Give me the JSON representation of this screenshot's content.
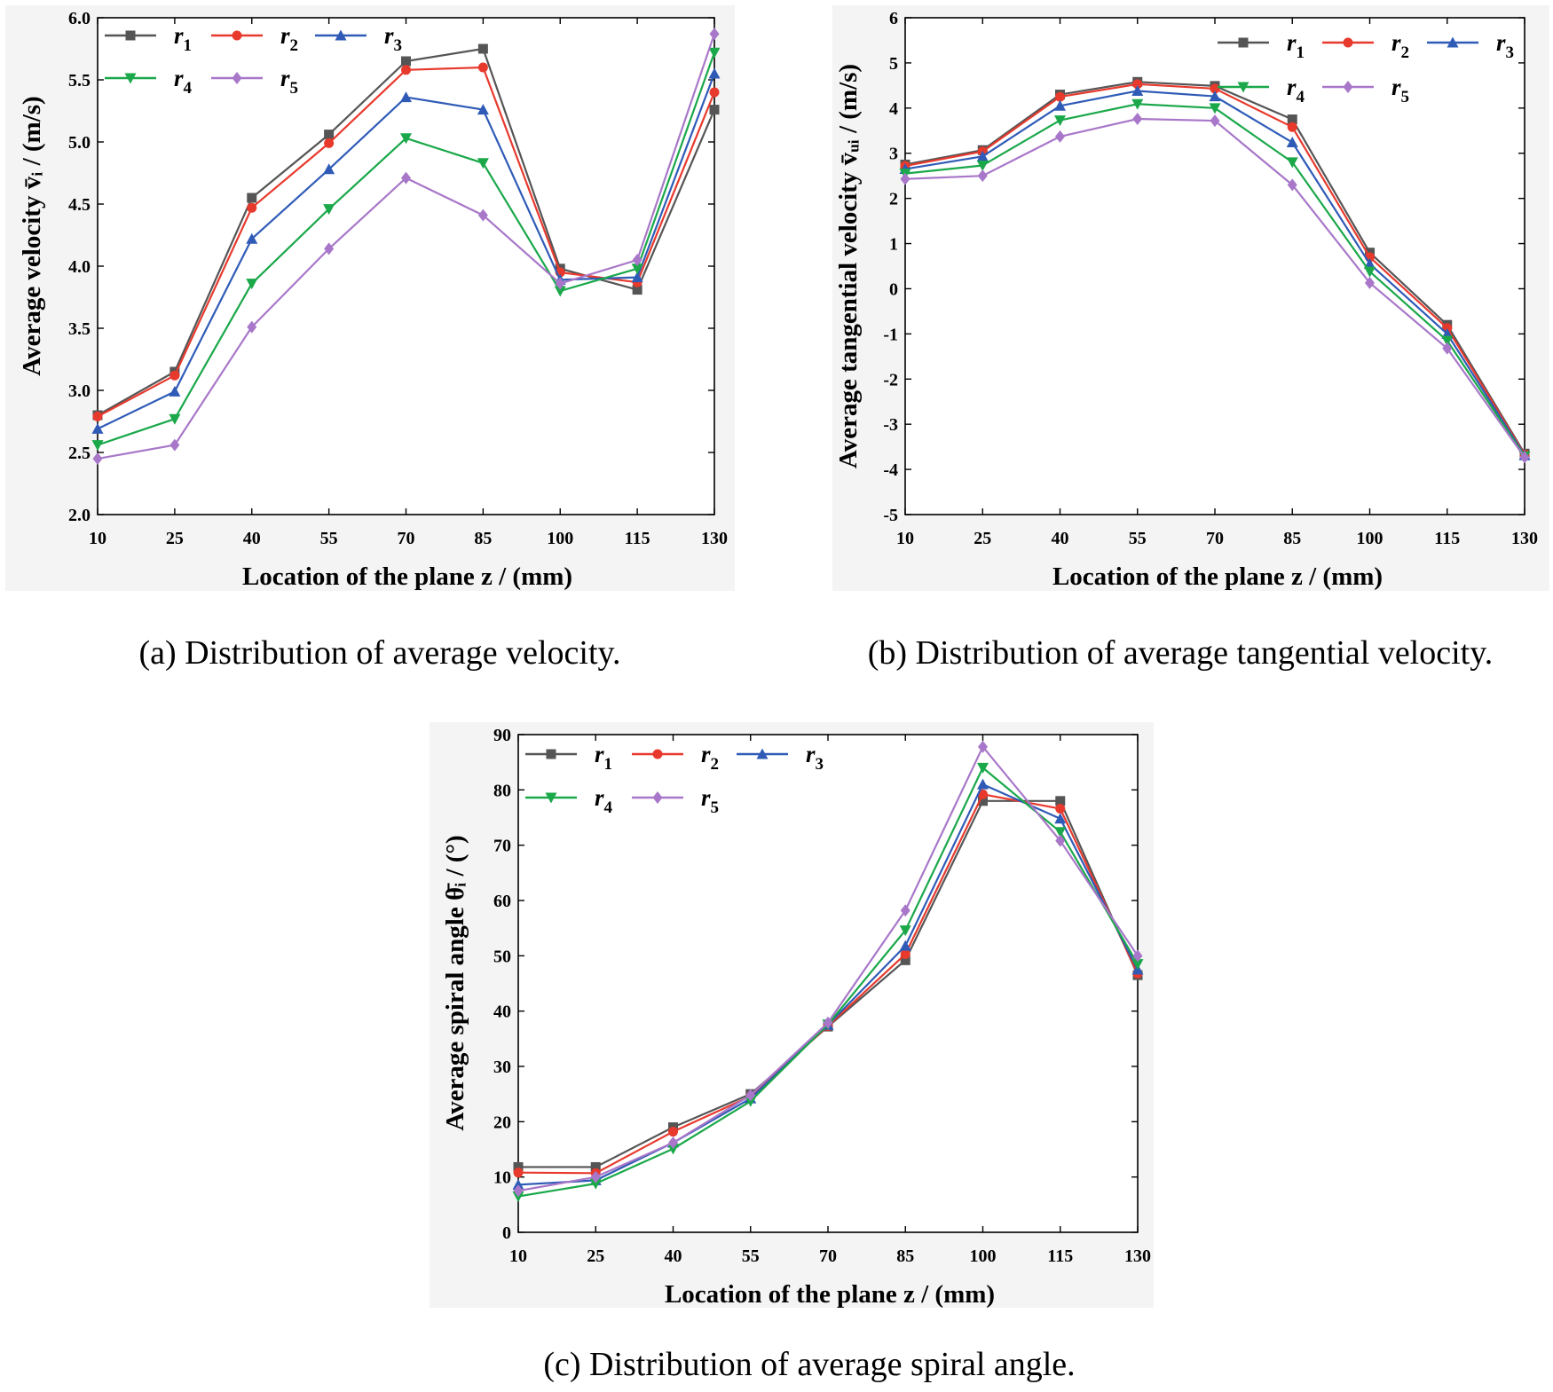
{
  "chart_data": [
    {
      "id": "a",
      "type": "line",
      "caption": "(a) Distribution of average velocity.",
      "xlabel": "Location of the plane z / (mm)",
      "ylabel": "Average velocity v̄ᵢ / (m/s)",
      "x": [
        10,
        25,
        40,
        55,
        70,
        85,
        100,
        115,
        130
      ],
      "x_tick_labels": [
        "10",
        "25",
        "40",
        "55",
        "70",
        "85",
        "100",
        "115",
        "130"
      ],
      "ylim": [
        2.0,
        6.0
      ],
      "y_ticks": [
        2.0,
        2.5,
        3.0,
        3.5,
        4.0,
        4.5,
        5.0,
        5.5,
        6.0
      ],
      "y_tick_labels": [
        "2.0",
        "2.5",
        "3.0",
        "3.5",
        "4.0",
        "4.5",
        "5.0",
        "5.5",
        "6.0"
      ],
      "legend_position": "top-left",
      "series": [
        {
          "name": "r1",
          "base": "r",
          "sub": "1",
          "color": "#555555",
          "marker": "square",
          "values": [
            2.8,
            3.15,
            4.55,
            5.06,
            5.65,
            5.75,
            3.98,
            3.81,
            5.26
          ]
        },
        {
          "name": "r2",
          "base": "r",
          "sub": "2",
          "color": "#e8392d",
          "marker": "circle",
          "values": [
            2.79,
            3.12,
            4.47,
            4.99,
            5.58,
            5.6,
            3.95,
            3.87,
            5.4
          ]
        },
        {
          "name": "r3",
          "base": "r",
          "sub": "3",
          "color": "#2f5bb7",
          "marker": "triangle-up",
          "values": [
            2.69,
            2.99,
            4.22,
            4.78,
            5.36,
            5.26,
            3.89,
            3.91,
            5.55
          ]
        },
        {
          "name": "r4",
          "base": "r",
          "sub": "4",
          "color": "#1aa84a",
          "marker": "triangle-down",
          "values": [
            2.56,
            2.77,
            3.86,
            4.46,
            5.03,
            4.83,
            3.8,
            3.98,
            5.72
          ]
        },
        {
          "name": "r5",
          "base": "r",
          "sub": "5",
          "color": "#a877c9",
          "marker": "diamond",
          "values": [
            2.45,
            2.56,
            3.51,
            4.14,
            4.71,
            4.41,
            3.86,
            4.05,
            5.87
          ]
        }
      ]
    },
    {
      "id": "b",
      "type": "line",
      "caption": "(b) Distribution of average tangential velocity.",
      "xlabel": "Location of the plane z / (mm)",
      "ylabel": "Average tangential velocity v̄ᵤᵢ / (m/s)",
      "x": [
        10,
        25,
        40,
        55,
        70,
        85,
        100,
        115,
        130
      ],
      "x_tick_labels": [
        "10",
        "25",
        "40",
        "55",
        "70",
        "85",
        "100",
        "115",
        "130"
      ],
      "ylim": [
        -5,
        6
      ],
      "y_ticks": [
        -5,
        -4,
        -3,
        -2,
        -1,
        0,
        1,
        2,
        3,
        4,
        5,
        6
      ],
      "y_tick_labels": [
        "-5",
        "-4",
        "-3",
        "-2",
        "-1",
        "0",
        "1",
        "2",
        "3",
        "4",
        "5",
        "6"
      ],
      "legend_position": "top-right",
      "series": [
        {
          "name": "r1",
          "base": "r",
          "sub": "1",
          "color": "#555555",
          "marker": "square",
          "values": [
            2.75,
            3.07,
            4.3,
            4.58,
            4.49,
            3.75,
            0.8,
            -0.8,
            -3.65
          ]
        },
        {
          "name": "r2",
          "base": "r",
          "sub": "2",
          "color": "#e8392d",
          "marker": "circle",
          "values": [
            2.72,
            3.04,
            4.25,
            4.53,
            4.43,
            3.58,
            0.7,
            -0.87,
            -3.67
          ]
        },
        {
          "name": "r3",
          "base": "r",
          "sub": "3",
          "color": "#2f5bb7",
          "marker": "triangle-up",
          "values": [
            2.65,
            2.93,
            4.05,
            4.38,
            4.26,
            3.24,
            0.55,
            -1.0,
            -3.69
          ]
        },
        {
          "name": "r4",
          "base": "r",
          "sub": "4",
          "color": "#1aa84a",
          "marker": "triangle-down",
          "values": [
            2.55,
            2.73,
            3.73,
            4.09,
            4.0,
            2.8,
            0.38,
            -1.15,
            -3.71
          ]
        },
        {
          "name": "r5",
          "base": "r",
          "sub": "5",
          "color": "#a877c9",
          "marker": "diamond",
          "values": [
            2.43,
            2.5,
            3.37,
            3.76,
            3.72,
            2.3,
            0.13,
            -1.32,
            -3.73
          ]
        }
      ]
    },
    {
      "id": "c",
      "type": "line",
      "caption": "(c) Distribution of average spiral angle.",
      "xlabel": "Location of the plane z / (mm)",
      "ylabel": "Average spiral angle θ̄ᵢ / (°)",
      "x": [
        10,
        25,
        40,
        55,
        70,
        85,
        100,
        115,
        130
      ],
      "x_tick_labels": [
        "10",
        "25",
        "40",
        "55",
        "70",
        "85",
        "100",
        "115",
        "130"
      ],
      "ylim": [
        0,
        90
      ],
      "y_ticks": [
        0,
        10,
        20,
        30,
        40,
        50,
        60,
        70,
        80,
        90
      ],
      "y_tick_labels": [
        "0",
        "10",
        "20",
        "30",
        "40",
        "50",
        "60",
        "70",
        "80",
        "90"
      ],
      "legend_position": "top-left",
      "series": [
        {
          "name": "r1",
          "base": "r",
          "sub": "1",
          "color": "#555555",
          "marker": "square",
          "values": [
            11.8,
            11.8,
            19.0,
            25.0,
            37.2,
            49.2,
            78.0,
            78.0,
            46.5
          ]
        },
        {
          "name": "r2",
          "base": "r",
          "sub": "2",
          "color": "#e8392d",
          "marker": "circle",
          "values": [
            10.8,
            10.7,
            18.2,
            24.6,
            37.3,
            50.3,
            79.2,
            76.6,
            46.8
          ]
        },
        {
          "name": "r3",
          "base": "r",
          "sub": "3",
          "color": "#2f5bb7",
          "marker": "triangle-up",
          "values": [
            8.6,
            9.4,
            16.2,
            24.2,
            37.5,
            51.8,
            81.0,
            74.8,
            47.5
          ]
        },
        {
          "name": "r4",
          "base": "r",
          "sub": "4",
          "color": "#1aa84a",
          "marker": "triangle-down",
          "values": [
            6.5,
            8.8,
            15.1,
            23.7,
            37.6,
            54.6,
            84.0,
            72.4,
            48.5
          ]
        },
        {
          "name": "r5",
          "base": "r",
          "sub": "5",
          "color": "#a877c9",
          "marker": "diamond",
          "values": [
            7.5,
            10.0,
            16.2,
            24.8,
            37.9,
            58.2,
            87.8,
            70.8,
            50.0
          ]
        }
      ]
    }
  ]
}
